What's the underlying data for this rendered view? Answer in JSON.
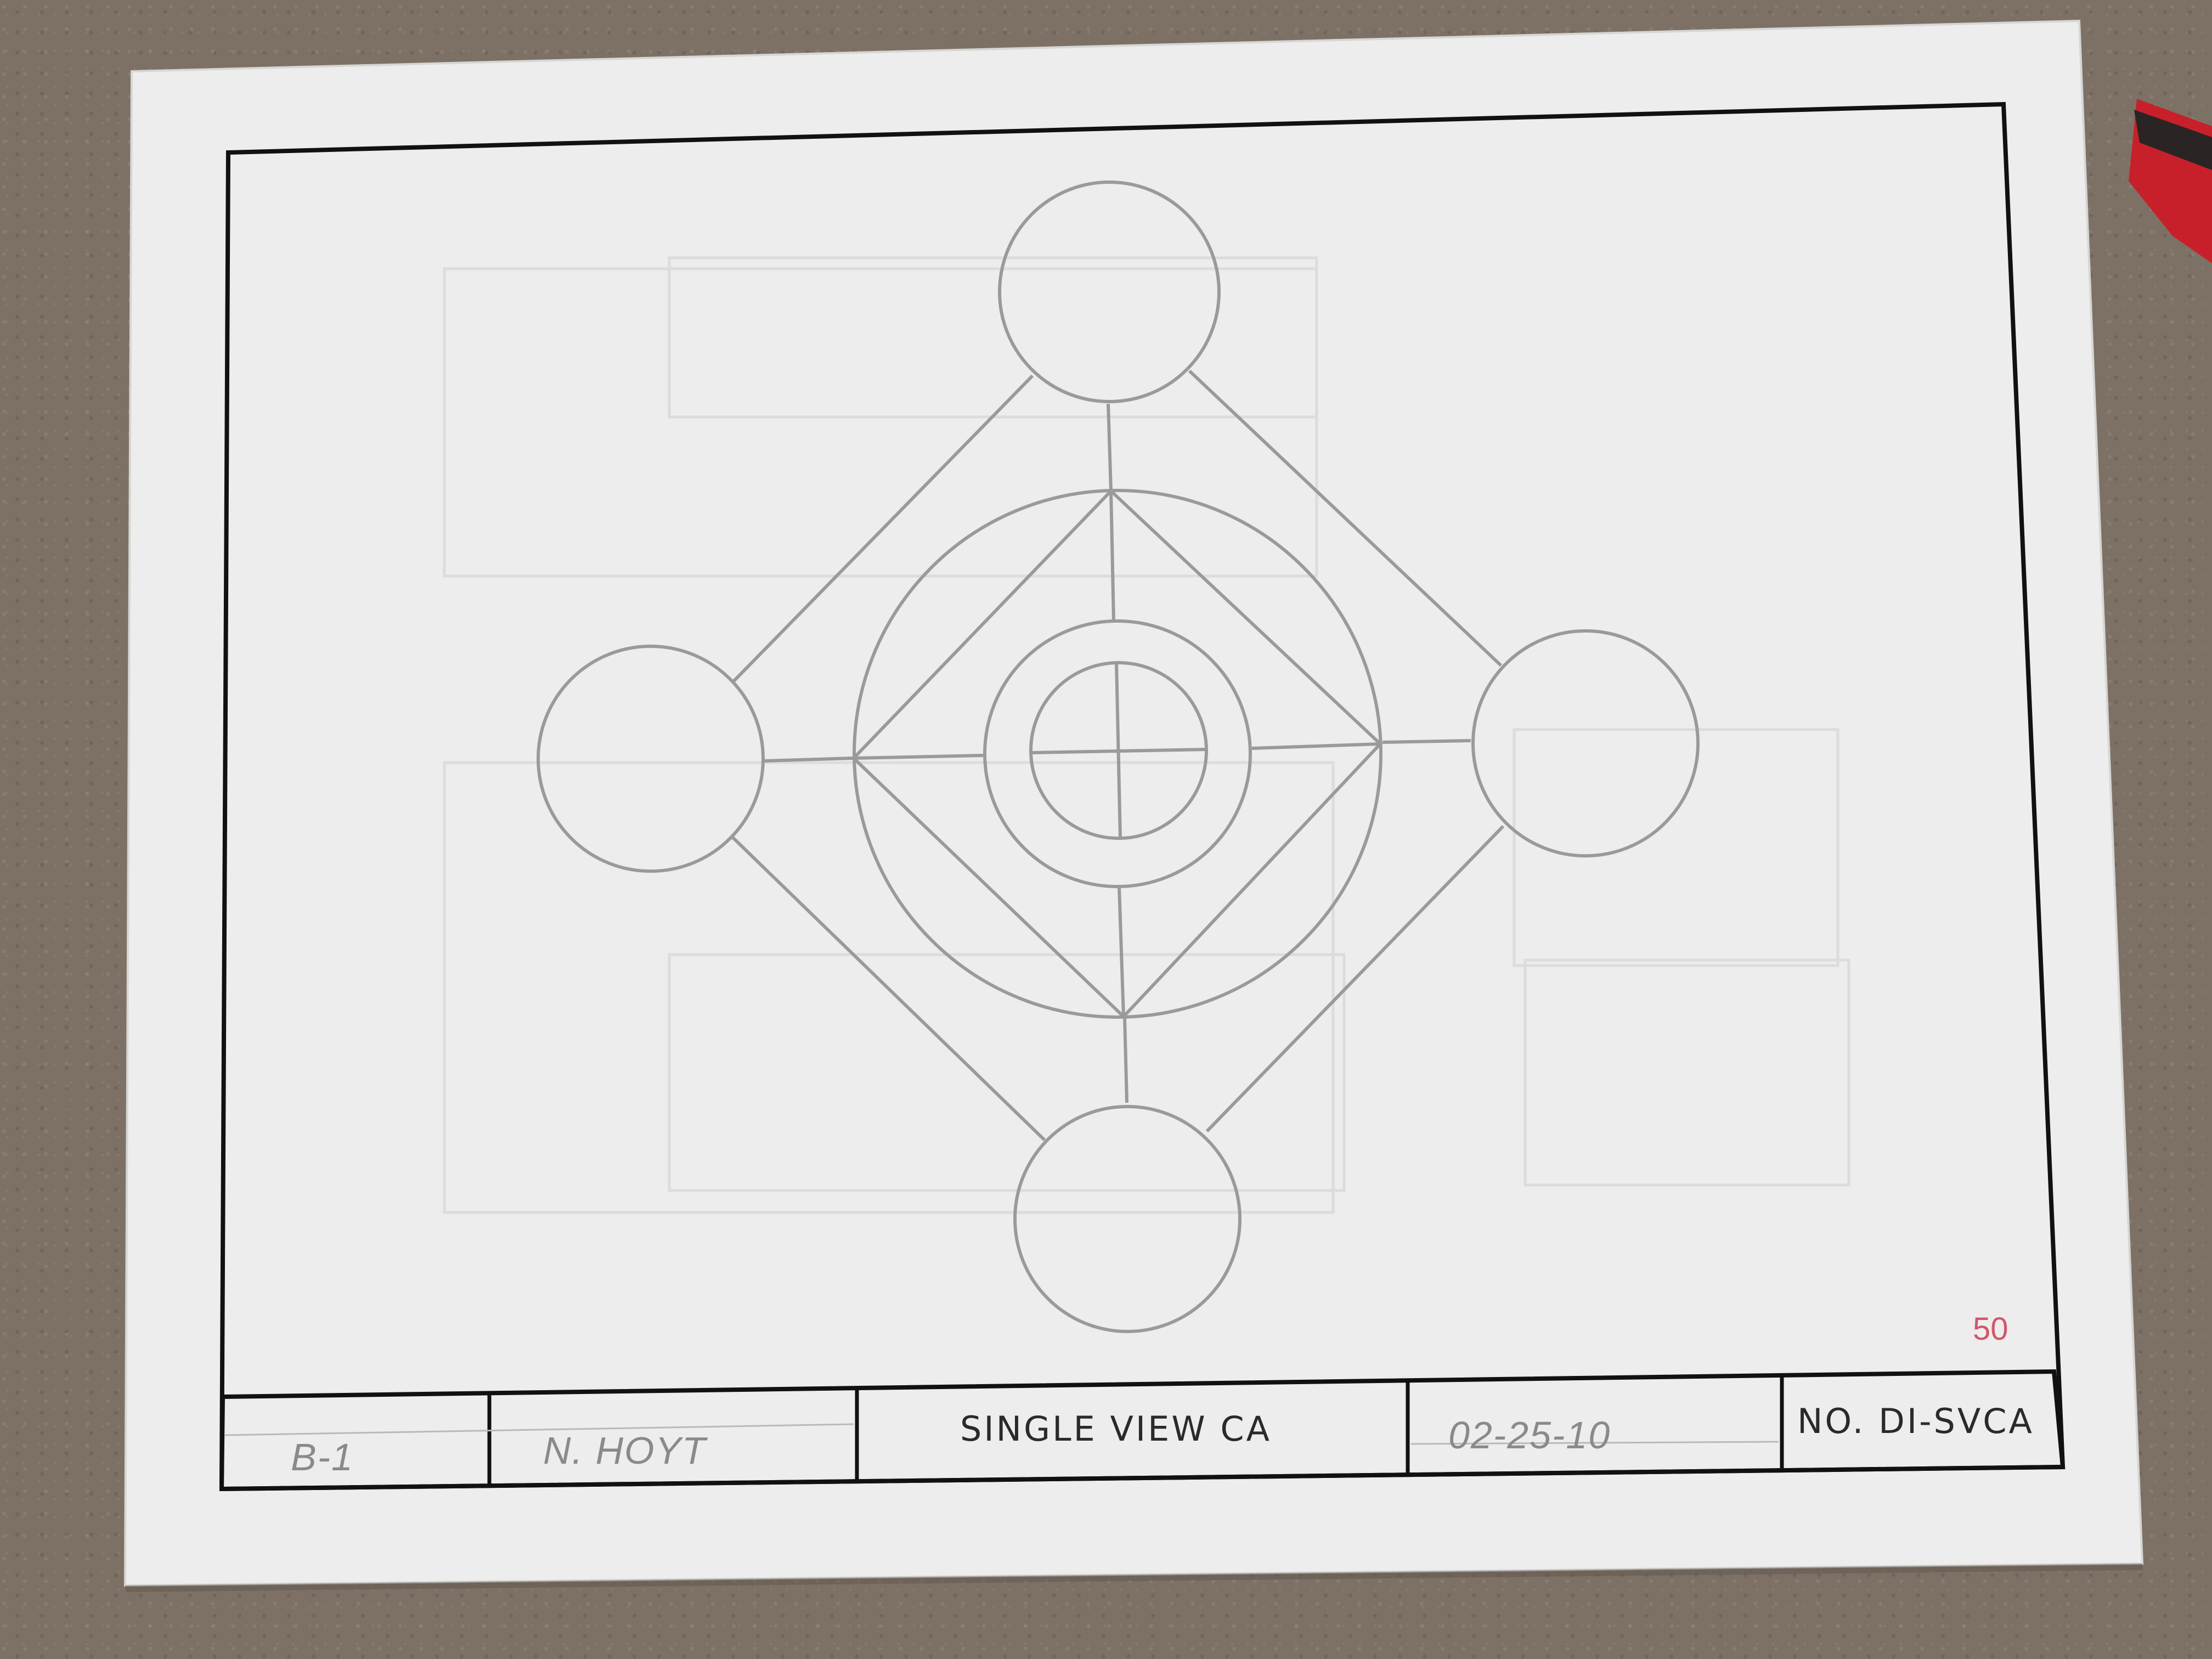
{
  "title_block": {
    "sheet": "B-1",
    "drafter": "N. HOYT",
    "title": "SINGLE VIEW CA",
    "date": "02-25-10",
    "number": "NO. DI-SVCA"
  },
  "page_mark": "50",
  "colors": {
    "carpet": "#7d7166",
    "paper": "#ecedec",
    "border": "#111111",
    "drawing_line": "#9a9a9a",
    "page_mark": "#d2566a",
    "marker": "#c8202a"
  }
}
